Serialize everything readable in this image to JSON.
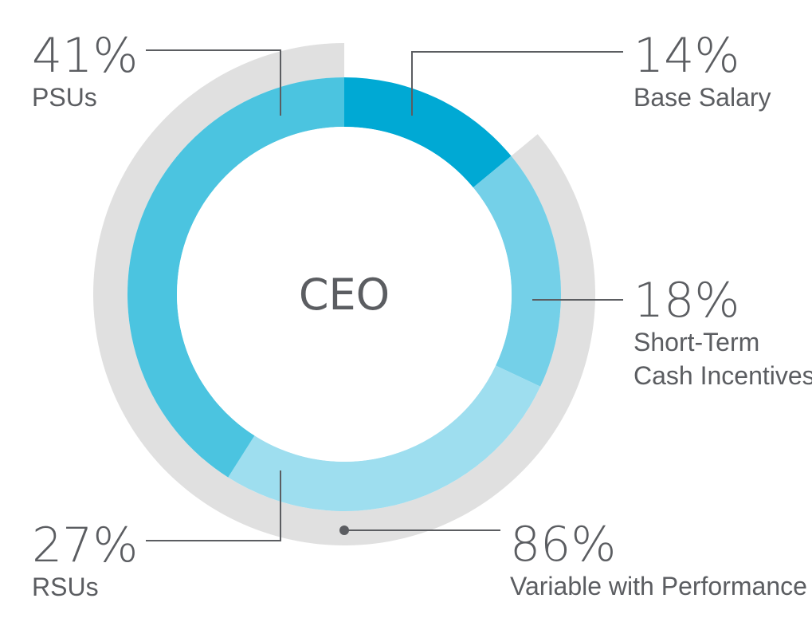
{
  "chart_data": {
    "type": "pie",
    "title": "CEO",
    "center_label": "CEO",
    "slices": [
      {
        "pct_label": "14%",
        "value": 14,
        "label_lines": [
          "Base Salary"
        ],
        "color": "#00a9d4"
      },
      {
        "pct_label": "18%",
        "value": 18,
        "label_lines": [
          "Short-Term",
          "Cash Incentives"
        ],
        "color": "#74d0e8"
      },
      {
        "pct_label": "27%",
        "value": 27,
        "label_lines": [
          "RSUs"
        ],
        "color": "#9edeef"
      },
      {
        "pct_label": "41%",
        "value": 41,
        "label_lines": [
          "PSUs"
        ],
        "color": "#4bc4e0"
      }
    ],
    "outer_arc": {
      "pct_label": "86%",
      "value": 86,
      "label_lines": [
        "Variable with Performance"
      ],
      "color": "#e0e0e0"
    },
    "colors": {
      "text": "#5b5d61",
      "leader_line": "#5b5d61"
    }
  }
}
